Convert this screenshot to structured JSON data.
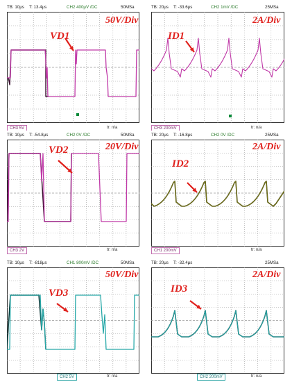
{
  "panels": [
    {
      "id": "p1",
      "status": {
        "tb": "TB: 10μs",
        "t": "T: 13.4μs",
        "ch": "CH2 400μV /DC",
        "rate": "50MSa"
      },
      "scale_label": "50V/Div",
      "signal_label": "VD1",
      "footer": {
        "channel": "CH3 5V",
        "tr": "tr: n/a"
      },
      "color": "#c03aa8"
    },
    {
      "id": "p2",
      "status": {
        "tb": "TB: 20μs",
        "t": "T: -33.6μs",
        "ch": "CH2 1mV /DC",
        "rate": "25MSa"
      },
      "scale_label": "2A/Div",
      "signal_label": "ID1",
      "footer": {
        "channel": "CH3 200mV",
        "tr": "tr: n/a"
      },
      "color": "#c03aa8"
    },
    {
      "id": "p3",
      "status": {
        "tb": "TB: 10μs",
        "t": "T: -54.8μs",
        "ch": "CH2 0V /DC",
        "rate": "50MSa"
      },
      "scale_label": "20V/Div",
      "signal_label": "VD2",
      "footer": {
        "channel": "CH3 2V",
        "tr": "tr: n/a"
      },
      "color": "#c03aa8"
    },
    {
      "id": "p4",
      "status": {
        "tb": "TB: 20μs",
        "t": "T: -16.8μs",
        "ch": "CH2 0V /DC",
        "rate": "25MSa"
      },
      "scale_label": "2A/Div",
      "signal_label": "ID2",
      "footer": {
        "channel": "CH1 200mV",
        "tr": "tr: n/a"
      },
      "color": "#7a7a1a"
    },
    {
      "id": "p5",
      "status": {
        "tb": "TB: 10μs",
        "t": "T: -818μs",
        "ch": "CH1 800mV /DC",
        "rate": "50MSa"
      },
      "scale_label": "50V/Div",
      "signal_label": "VD3",
      "footer": {
        "channel": "CH2 5V",
        "tr": "tr: n/a"
      },
      "color": "#26a8a8"
    },
    {
      "id": "p6",
      "status": {
        "tb": "TB: 20μs",
        "t": "T: -32.4μs",
        "ch": "",
        "rate": "25MSa"
      },
      "scale_label": "2A/Div",
      "signal_label": "ID3",
      "footer": {
        "channel": "CH2 200mV",
        "tr": "tr: n/a"
      },
      "color": "#26a8a8"
    }
  ],
  "colors": {
    "arrow": "#e0201c",
    "grid": "#9a9a9a",
    "frame": "#333333"
  }
}
